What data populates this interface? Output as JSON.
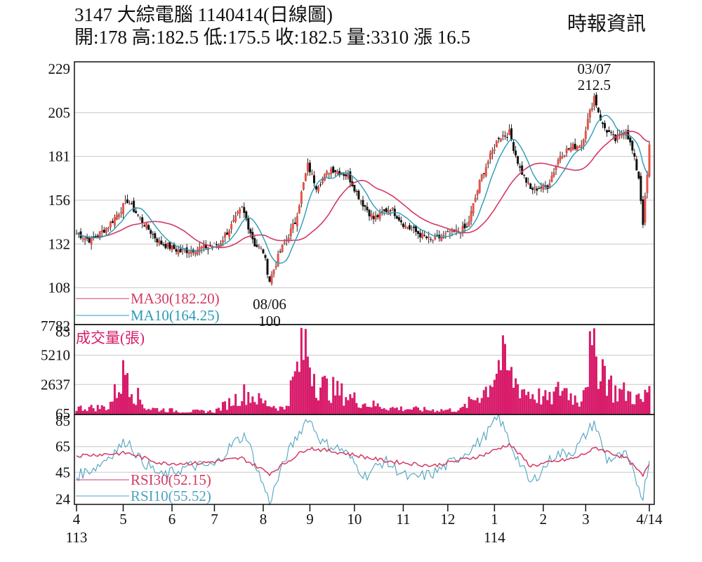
{
  "header": {
    "title": "3147 大綜電腦 1140414(日線圖)",
    "ohlc": "開:178 高:182.5 低:175.5 收:182.5 量:3310 漲 16.5",
    "source": "時報資訊"
  },
  "colors": {
    "up": "#e8524a",
    "down": "#111111",
    "ma30": "#d23a63",
    "ma10": "#2a9bb5",
    "volume": "#d81b6a",
    "rsi30": "#d23a63",
    "rsi10": "#4fa3c0",
    "grid": "#c8c8c8"
  },
  "chart_data": [
    {
      "type": "candlestick",
      "yticks": [
        "229",
        "205",
        "181",
        "156",
        "132",
        "108",
        "83"
      ],
      "ylim": [
        83,
        229
      ],
      "xticks": [
        {
          "label": "4",
          "sub": "113",
          "date": "2024-04-01"
        },
        {
          "label": "5",
          "date": "2024-05-01"
        },
        {
          "label": "6",
          "date": "2024-06-01"
        },
        {
          "label": "7",
          "date": "2024-07-01"
        },
        {
          "label": "8",
          "date": "2024-08-01"
        },
        {
          "label": "9",
          "date": "2024-09-01"
        },
        {
          "label": "10",
          "date": "2024-10-01"
        },
        {
          "label": "11",
          "date": "2024-11-01"
        },
        {
          "label": "12",
          "date": "2024-12-01"
        },
        {
          "label": "1",
          "sub": "114",
          "date": "2025-01-01"
        },
        {
          "label": "2",
          "date": "2025-02-01"
        },
        {
          "label": "3",
          "date": "2025-03-01"
        },
        {
          "label": "4/14",
          "date": "2025-04-14"
        }
      ],
      "close_anchors": [
        [
          "2024-04-01",
          134
        ],
        [
          "2024-04-10",
          130
        ],
        [
          "2024-04-22",
          138
        ],
        [
          "2024-05-03",
          152
        ],
        [
          "2024-05-13",
          142
        ],
        [
          "2024-05-24",
          129
        ],
        [
          "2024-06-07",
          124
        ],
        [
          "2024-06-21",
          126
        ],
        [
          "2024-07-03",
          128
        ],
        [
          "2024-07-11",
          138
        ],
        [
          "2024-07-18",
          148
        ],
        [
          "2024-07-26",
          128
        ],
        [
          "2024-08-01",
          124
        ],
        [
          "2024-08-06",
          108
        ],
        [
          "2024-08-13",
          124
        ],
        [
          "2024-08-22",
          140
        ],
        [
          "2024-08-30",
          172
        ],
        [
          "2024-09-05",
          160
        ],
        [
          "2024-09-16",
          170
        ],
        [
          "2024-09-26",
          166
        ],
        [
          "2024-10-04",
          152
        ],
        [
          "2024-10-14",
          142
        ],
        [
          "2024-10-24",
          148
        ],
        [
          "2024-11-04",
          138
        ],
        [
          "2024-11-20",
          130
        ],
        [
          "2024-12-04",
          134
        ],
        [
          "2024-12-13",
          137
        ],
        [
          "2024-12-24",
          166
        ],
        [
          "2025-01-03",
          188
        ],
        [
          "2025-01-10",
          190
        ],
        [
          "2025-01-17",
          170
        ],
        [
          "2025-01-24",
          158
        ],
        [
          "2025-02-05",
          160
        ],
        [
          "2025-02-13",
          178
        ],
        [
          "2025-02-20",
          182
        ],
        [
          "2025-02-27",
          184
        ],
        [
          "2025-03-07",
          210
        ],
        [
          "2025-03-13",
          194
        ],
        [
          "2025-03-21",
          186
        ],
        [
          "2025-03-28",
          192
        ],
        [
          "2025-04-02",
          180
        ],
        [
          "2025-04-07",
          165
        ],
        [
          "2025-04-09",
          140
        ],
        [
          "2025-04-11",
          166
        ],
        [
          "2025-04-14",
          182.5
        ]
      ],
      "annotations": [
        {
          "date": "2025-03-07",
          "value": 212.5,
          "label_date": "03/07",
          "label_value": "212.5",
          "kind": "high"
        },
        {
          "date": "2024-08-06",
          "value": 100,
          "label_date": "08/06",
          "label_value": "100",
          "kind": "low"
        }
      ],
      "legend": [
        {
          "label": "MA30(182.20)",
          "color": "#d23a63"
        },
        {
          "label": "MA10(164.25)",
          "color": "#2a9bb5"
        }
      ]
    },
    {
      "type": "bar",
      "title": "成交量(張)",
      "yticks": [
        "7782",
        "5210",
        "2637",
        "65"
      ],
      "ylim": [
        0,
        7782
      ],
      "volume_anchors": [
        [
          "2024-04-01",
          700
        ],
        [
          "2024-04-22",
          800
        ],
        [
          "2024-05-03",
          5200
        ],
        [
          "2024-05-08",
          2500
        ],
        [
          "2024-05-16",
          700
        ],
        [
          "2024-06-10",
          350
        ],
        [
          "2024-07-01",
          350
        ],
        [
          "2024-07-22",
          2400
        ],
        [
          "2024-08-01",
          1300
        ],
        [
          "2024-08-15",
          600
        ],
        [
          "2024-08-29",
          7700
        ],
        [
          "2024-09-06",
          3300
        ],
        [
          "2024-09-20",
          2400
        ],
        [
          "2024-10-08",
          1200
        ],
        [
          "2024-10-25",
          700
        ],
        [
          "2024-11-20",
          500
        ],
        [
          "2024-12-10",
          500
        ],
        [
          "2024-12-26",
          2800
        ],
        [
          "2025-01-06",
          6000
        ],
        [
          "2025-01-13",
          4000
        ],
        [
          "2025-01-22",
          2500
        ],
        [
          "2025-02-06",
          1600
        ],
        [
          "2025-02-14",
          3000
        ],
        [
          "2025-02-26",
          1400
        ],
        [
          "2025-03-05",
          6200
        ],
        [
          "2025-03-12",
          6000
        ],
        [
          "2025-03-20",
          2600
        ],
        [
          "2025-03-31",
          2300
        ],
        [
          "2025-04-09",
          1400
        ],
        [
          "2025-04-14",
          3310
        ]
      ]
    },
    {
      "type": "line",
      "yticks": [
        "85",
        "65",
        "45",
        "24"
      ],
      "ylim": [
        20,
        90
      ],
      "legend": [
        {
          "label": "RSI30(52.15)",
          "color": "#d23a63"
        },
        {
          "label": "RSI10(55.52)",
          "color": "#4fa3c0"
        }
      ],
      "rsi10_anchors": [
        [
          "2024-04-01",
          42
        ],
        [
          "2024-04-15",
          50
        ],
        [
          "2024-05-03",
          70
        ],
        [
          "2024-05-13",
          55
        ],
        [
          "2024-05-27",
          42
        ],
        [
          "2024-06-14",
          50
        ],
        [
          "2024-07-01",
          50
        ],
        [
          "2024-07-12",
          68
        ],
        [
          "2024-07-22",
          74
        ],
        [
          "2024-07-29",
          48
        ],
        [
          "2024-08-06",
          22
        ],
        [
          "2024-08-16",
          58
        ],
        [
          "2024-08-30",
          88
        ],
        [
          "2024-09-10",
          68
        ],
        [
          "2024-09-24",
          62
        ],
        [
          "2024-10-08",
          42
        ],
        [
          "2024-10-21",
          54
        ],
        [
          "2024-11-06",
          40
        ],
        [
          "2024-11-21",
          44
        ],
        [
          "2024-12-06",
          55
        ],
        [
          "2024-12-24",
          70
        ],
        [
          "2025-01-03",
          88
        ],
        [
          "2025-01-14",
          62
        ],
        [
          "2025-01-24",
          36
        ],
        [
          "2025-02-10",
          58
        ],
        [
          "2025-02-24",
          62
        ],
        [
          "2025-03-07",
          84
        ],
        [
          "2025-03-17",
          55
        ],
        [
          "2025-03-28",
          58
        ],
        [
          "2025-04-09",
          26
        ],
        [
          "2025-04-14",
          55.52
        ]
      ],
      "rsi30_anchors": [
        [
          "2024-04-01",
          58
        ],
        [
          "2024-05-03",
          60
        ],
        [
          "2024-05-27",
          52
        ],
        [
          "2024-06-20",
          52
        ],
        [
          "2024-07-18",
          56
        ],
        [
          "2024-08-06",
          44
        ],
        [
          "2024-08-30",
          64
        ],
        [
          "2024-09-24",
          60
        ],
        [
          "2024-10-21",
          54
        ],
        [
          "2024-11-21",
          50
        ],
        [
          "2024-12-24",
          58
        ],
        [
          "2025-01-10",
          67
        ],
        [
          "2025-01-24",
          50
        ],
        [
          "2025-02-24",
          56
        ],
        [
          "2025-03-10",
          64
        ],
        [
          "2025-03-28",
          56
        ],
        [
          "2025-04-09",
          42
        ],
        [
          "2025-04-14",
          52.15
        ]
      ]
    }
  ]
}
